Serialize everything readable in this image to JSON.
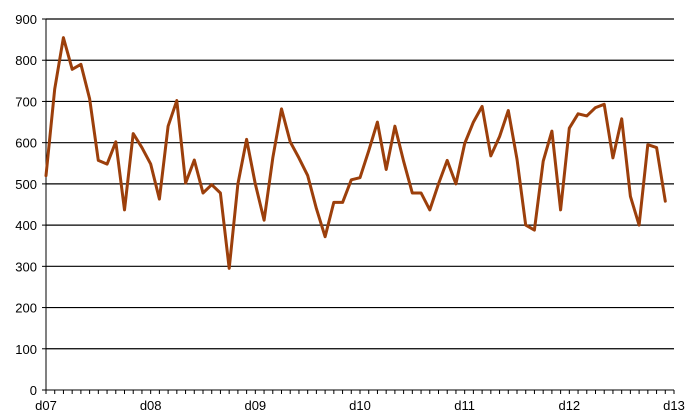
{
  "chart_data": {
    "type": "line",
    "title": "",
    "xlabel": "",
    "ylabel": "",
    "ylim": [
      0,
      900
    ],
    "yticks": [
      "0",
      "100",
      "200",
      "300",
      "400",
      "500",
      "600",
      "700",
      "800",
      "900"
    ],
    "xtick_labels": [
      "d07",
      "d08",
      "d09",
      "d10",
      "d11",
      "d12",
      "d13"
    ],
    "points_per_major_tick": 12,
    "grid": true,
    "legend": "none",
    "colors": {
      "line": "#9c3f0b",
      "grid": "#000000",
      "axis": "#000000"
    },
    "series": [
      {
        "values": [
          520,
          730,
          855,
          778,
          790,
          707,
          557,
          548,
          602,
          437,
          622,
          588,
          548,
          463,
          640,
          702,
          502,
          558,
          478,
          498,
          478,
          295,
          500,
          608,
          500,
          412,
          563,
          682,
          602,
          563,
          520,
          440,
          372,
          455,
          455,
          510,
          515,
          580,
          650,
          535,
          640,
          555,
          478,
          478,
          437,
          500,
          557,
          500,
          598,
          650,
          688,
          568,
          615,
          678,
          560,
          400,
          388,
          555,
          628,
          437,
          635,
          670,
          665,
          685,
          693,
          563,
          658,
          470,
          400,
          595,
          588,
          458
        ]
      }
    ]
  }
}
